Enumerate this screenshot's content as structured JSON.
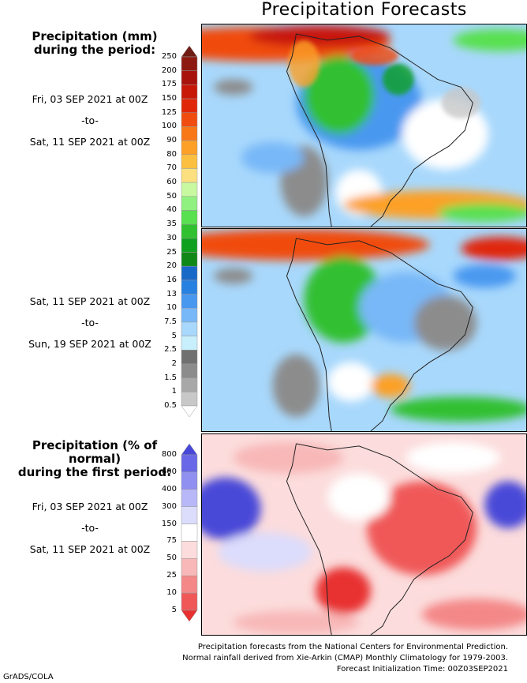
{
  "title": "Precipitation Forecasts",
  "legend_mm": {
    "heading_line1": "Precipitation (mm)",
    "heading_line2": "during the period:",
    "levels": [
      "250",
      "200",
      "175",
      "150",
      "125",
      "100",
      "90",
      "80",
      "70",
      "60",
      "50",
      "40",
      "35",
      "30",
      "25",
      "20",
      "16",
      "13",
      "10",
      "7.5",
      "5",
      "2.5",
      "2",
      "1.5",
      "1",
      "0.5"
    ],
    "colors": [
      "#6e1e14",
      "#8c1a10",
      "#a8140c",
      "#c81808",
      "#e02808",
      "#f04c10",
      "#f87818",
      "#fca028",
      "#fcc040",
      "#fce080",
      "#c8f8a0",
      "#90f080",
      "#58e050",
      "#30c030",
      "#10a020",
      "#108818",
      "#1868c8",
      "#2880e0",
      "#4898f0",
      "#78b8f8",
      "#a8d8fc",
      "#c8f0fc",
      "#707070",
      "#8c8c8c",
      "#a8a8a8",
      "#c8c8c8",
      "#ffffff"
    ]
  },
  "legend_pct": {
    "heading_line1": "Precipitation (% of normal)",
    "heading_line2": "during the first period:",
    "levels": [
      "800",
      "600",
      "400",
      "300",
      "150",
      "75",
      "50",
      "25",
      "10",
      "5"
    ],
    "colors": [
      "#4848d8",
      "#6868e8",
      "#9090f0",
      "#b8b8f8",
      "#dcdcfc",
      "#ffffff",
      "#fcdcdc",
      "#f8b8b8",
      "#f48888",
      "#f05858",
      "#e83030"
    ]
  },
  "periods": [
    {
      "from": "Fri, 03 SEP 2021 at 00Z",
      "sep": "-to-",
      "to": "Sat, 11 SEP 2021 at 00Z"
    },
    {
      "from": "Sat, 11 SEP 2021 at 00Z",
      "sep": "-to-",
      "to": "Sun, 19 SEP 2021 at 00Z"
    },
    {
      "from": "Fri, 03 SEP 2021 at 00Z",
      "sep": "-to-",
      "to": "Sat, 11 SEP 2021 at 00Z"
    }
  ],
  "credits": {
    "line1": "Precipitation forecasts from the National Centers for Environmental Prediction.",
    "line2": "Normal rainfall derived from Xie-Arkin (CMAP) Monthly Climatology for 1979-2003.",
    "line3": "Forecast Initialization Time: 00Z03SEP2021"
  },
  "footer": "GrADS/COLA"
}
